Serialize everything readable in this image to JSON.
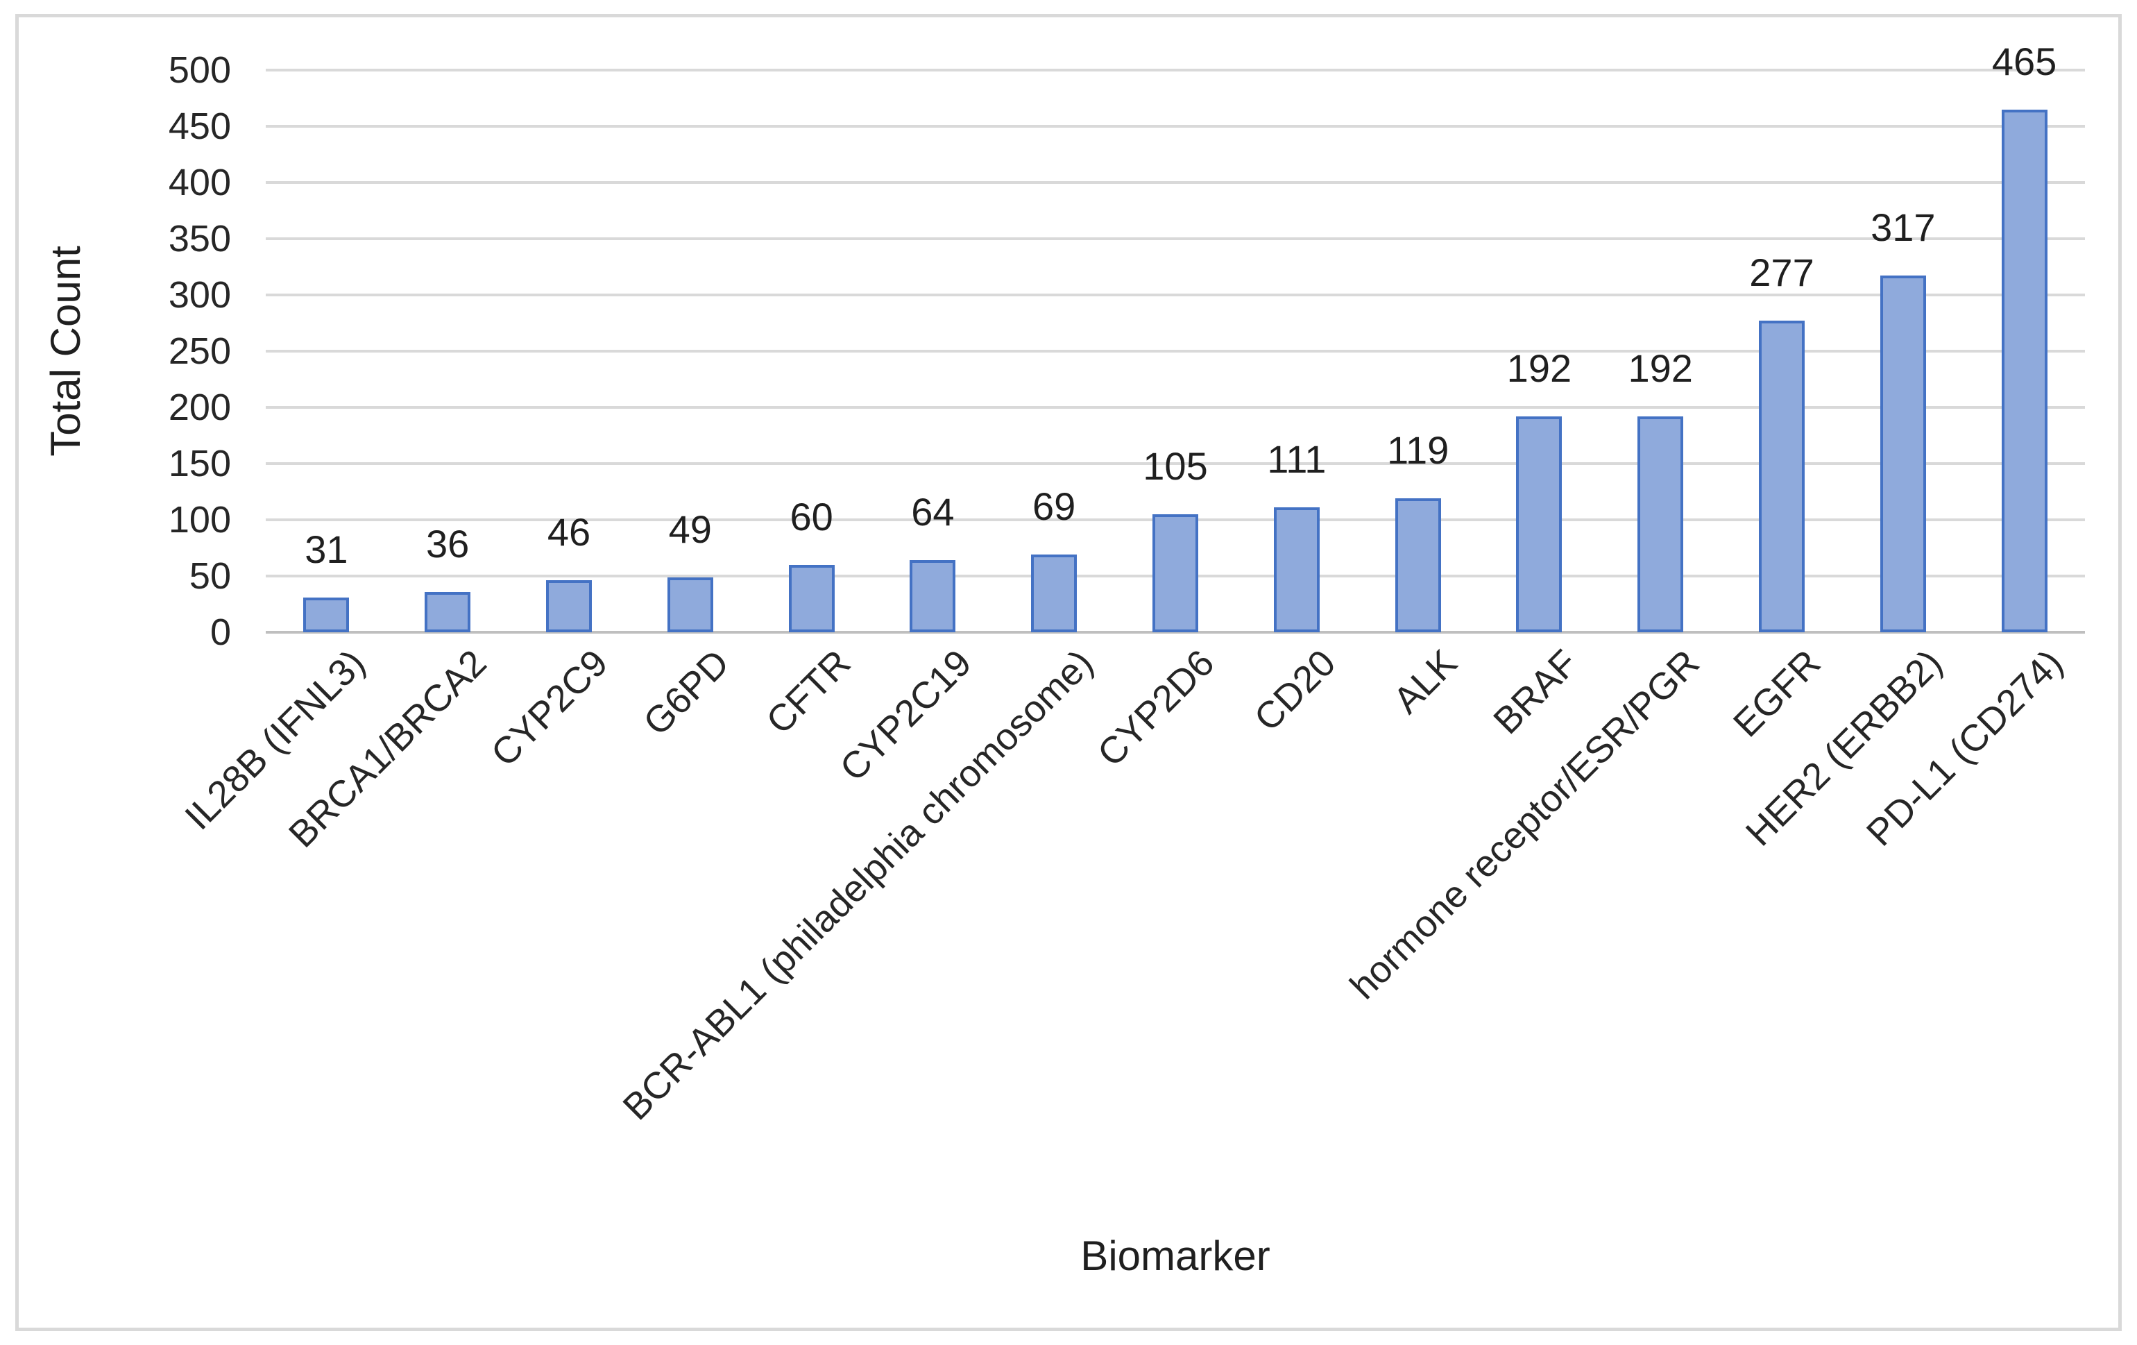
{
  "chart_data": {
    "type": "bar",
    "title": "",
    "xlabel": "Biomarker",
    "ylabel": "Total Count",
    "categories": [
      "IL28B (IFNL3)",
      "BRCA1/BRCA2",
      "CYP2C9",
      "G6PD",
      "CFTR",
      "CYP2C19",
      "BCR-ABL1 (philadelphia chromosome)",
      "CYP2D6",
      "CD20",
      "ALK",
      "BRAF",
      "hormone receptor/ESR/PGR",
      "EGFR",
      "HER2 (ERBB2)",
      "PD-L1 (CD274)"
    ],
    "values": [
      31,
      36,
      46,
      49,
      60,
      64,
      69,
      105,
      111,
      119,
      192,
      192,
      277,
      317,
      465
    ],
    "yticks": [
      0,
      50,
      100,
      150,
      200,
      250,
      300,
      350,
      400,
      450,
      500
    ],
    "ylim": [
      0,
      500
    ],
    "grid": "horizontal",
    "legend_position": "none",
    "data_labels": "above-bars",
    "colors": {
      "bar_fill": "#8faadc",
      "bar_border": "#4472c4",
      "gridline": "#d9d9d9",
      "axis_line": "#bfbfbf",
      "text": "#262626",
      "chart_border": "#d9d9d9",
      "background": "#ffffff"
    }
  }
}
